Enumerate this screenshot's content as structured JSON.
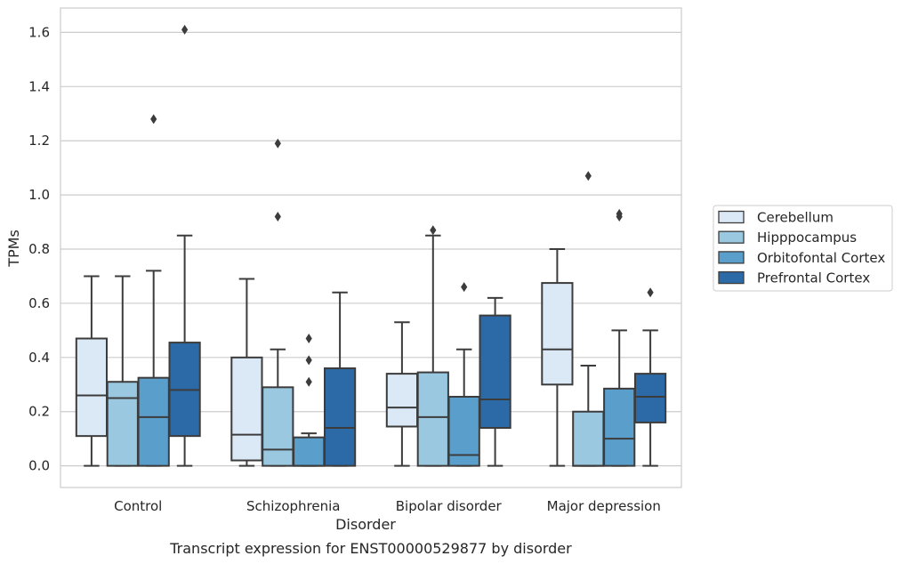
{
  "chart_data": {
    "type": "box",
    "title": "",
    "caption": "Transcript expression for ENST00000529877 by disorder",
    "xlabel": "Disorder",
    "ylabel": "TPMs",
    "ylim": [
      -0.08,
      1.69
    ],
    "yticks": [
      "0.0",
      "0.2",
      "0.4",
      "0.6",
      "0.8",
      "1.0",
      "1.2",
      "1.4",
      "1.6"
    ],
    "ytick_values": [
      0.0,
      0.2,
      0.4,
      0.6,
      0.8,
      1.0,
      1.2,
      1.4,
      1.6
    ],
    "grid": "horizontal",
    "legend_position": "right",
    "categories": [
      "Control",
      "Schizophrenia",
      "Bipolar disorder",
      "Major depression"
    ],
    "series": [
      {
        "name": "Cerebellum",
        "color": "#dbe9f6",
        "boxes": [
          {
            "whisker_low": 0.0,
            "q1": 0.11,
            "median": 0.26,
            "q3": 0.47,
            "whisker_high": 0.7,
            "outliers": []
          },
          {
            "whisker_low": 0.0,
            "q1": 0.02,
            "median": 0.115,
            "q3": 0.4,
            "whisker_high": 0.69,
            "outliers": []
          },
          {
            "whisker_low": 0.0,
            "q1": 0.145,
            "median": 0.215,
            "q3": 0.34,
            "whisker_high": 0.53,
            "outliers": []
          },
          {
            "whisker_low": 0.0,
            "q1": 0.3,
            "median": 0.43,
            "q3": 0.675,
            "whisker_high": 0.8,
            "outliers": []
          }
        ]
      },
      {
        "name": "Hipppocampus",
        "color": "#9ac8e0",
        "boxes": [
          {
            "whisker_low": 0.0,
            "q1": 0.0,
            "median": 0.25,
            "q3": 0.31,
            "whisker_high": 0.7,
            "outliers": []
          },
          {
            "whisker_low": 0.0,
            "q1": 0.0,
            "median": 0.06,
            "q3": 0.29,
            "whisker_high": 0.43,
            "outliers": [
              0.92,
              1.19
            ]
          },
          {
            "whisker_low": 0.0,
            "q1": 0.0,
            "median": 0.18,
            "q3": 0.345,
            "whisker_high": 0.85,
            "outliers": [
              0.87
            ]
          },
          {
            "whisker_low": 0.0,
            "q1": 0.0,
            "median": 0.0,
            "q3": 0.2,
            "whisker_high": 0.37,
            "outliers": [
              1.07
            ]
          }
        ]
      },
      {
        "name": "Orbitofontal Cortex",
        "color": "#5a9fcc",
        "boxes": [
          {
            "whisker_low": 0.0,
            "q1": 0.0,
            "median": 0.18,
            "q3": 0.325,
            "whisker_high": 0.72,
            "outliers": [
              1.28
            ]
          },
          {
            "whisker_low": 0.0,
            "q1": 0.0,
            "median": 0.0,
            "q3": 0.105,
            "whisker_high": 0.12,
            "outliers": [
              0.31,
              0.39,
              0.47
            ]
          },
          {
            "whisker_low": 0.0,
            "q1": 0.0,
            "median": 0.04,
            "q3": 0.255,
            "whisker_high": 0.43,
            "outliers": [
              0.66
            ]
          },
          {
            "whisker_low": 0.0,
            "q1": 0.0,
            "median": 0.1,
            "q3": 0.285,
            "whisker_high": 0.5,
            "outliers": [
              0.92,
              0.93
            ]
          }
        ]
      },
      {
        "name": "Prefrontal Cortex",
        "color": "#2b6aa6",
        "boxes": [
          {
            "whisker_low": 0.0,
            "q1": 0.11,
            "median": 0.28,
            "q3": 0.455,
            "whisker_high": 0.85,
            "outliers": [
              1.61
            ]
          },
          {
            "whisker_low": 0.0,
            "q1": 0.0,
            "median": 0.14,
            "q3": 0.36,
            "whisker_high": 0.64,
            "outliers": []
          },
          {
            "whisker_low": 0.0,
            "q1": 0.14,
            "median": 0.245,
            "q3": 0.555,
            "whisker_high": 0.62,
            "outliers": []
          },
          {
            "whisker_low": 0.0,
            "q1": 0.16,
            "median": 0.255,
            "q3": 0.34,
            "whisker_high": 0.5,
            "outliers": [
              0.64
            ]
          }
        ]
      }
    ]
  }
}
